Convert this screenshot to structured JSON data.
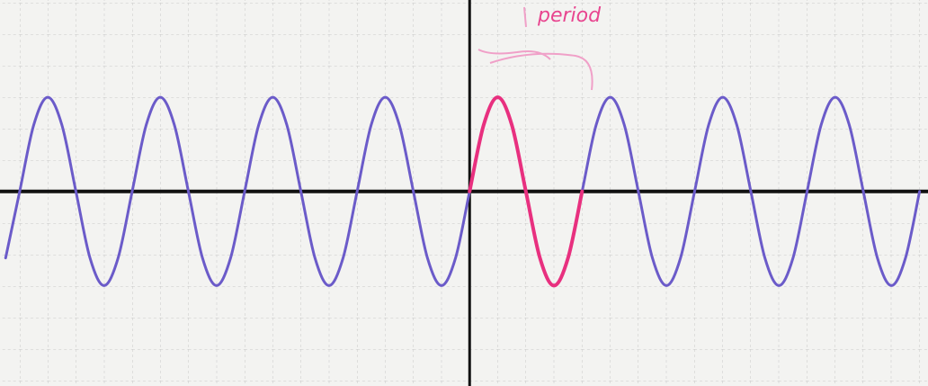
{
  "chart_data": {
    "type": "line",
    "annotation": "period",
    "x": [
      -16.5,
      -16,
      -15.5,
      -15,
      -14.5,
      -14,
      -13.5,
      -13,
      -12.5,
      -12,
      -11.5,
      -11,
      -10.5,
      -10,
      -9.5,
      -9,
      -8.5,
      -8,
      -7.5,
      -7,
      -6.5,
      -6,
      -5.5,
      -5,
      -4.5,
      -4,
      -3.5,
      -3,
      -2.5,
      -2,
      -1.5,
      -1,
      -0.5,
      0,
      0.5,
      1,
      1.5,
      2,
      2.5,
      3,
      3.5,
      4,
      4.5,
      5,
      5.5,
      6,
      6.5,
      7,
      7.5,
      8,
      8.5,
      9,
      9.5,
      10,
      10.5,
      11,
      11.5,
      12,
      12.5,
      13,
      13.5,
      14,
      14.5,
      15,
      15.5,
      16
    ],
    "series": [
      {
        "color": "#6b5bc9",
        "values": [
          -2.12,
          0,
          2.12,
          3,
          2.12,
          0,
          -2.12,
          -3,
          -2.12,
          0,
          2.12,
          3,
          2.12,
          0,
          -2.12,
          -3,
          -2.12,
          0,
          2.12,
          3,
          2.12,
          0,
          -2.12,
          -3,
          -2.12,
          0,
          2.12,
          3,
          2.12,
          0,
          -2.12,
          -3,
          -2.12,
          0,
          2.12,
          3,
          2.12,
          0,
          -2.12,
          -3,
          -2.12,
          0,
          2.12,
          3,
          2.12,
          0,
          -2.12,
          -3,
          -2.12,
          0,
          2.12,
          3,
          2.12,
          0,
          -2.12,
          -3,
          -2.12,
          0,
          2.12,
          3,
          2.12,
          0,
          -2.12,
          -3,
          -2.12,
          0
        ]
      },
      {
        "color": "#e8307f",
        "values": [
          null,
          null,
          null,
          null,
          null,
          null,
          null,
          null,
          null,
          null,
          null,
          null,
          null,
          null,
          null,
          null,
          null,
          null,
          null,
          null,
          null,
          null,
          null,
          null,
          null,
          null,
          null,
          null,
          null,
          null,
          null,
          null,
          null,
          0,
          2.12,
          3,
          2.12,
          0,
          -2.12,
          -3,
          -2.12,
          0,
          null,
          null,
          null,
          null,
          null,
          null,
          null,
          null,
          null,
          null,
          null,
          null,
          null,
          null,
          null,
          null,
          null,
          null,
          null,
          null,
          null,
          null,
          null,
          null
        ]
      }
    ],
    "xlim": [
      -16.7,
      16.3
    ],
    "ylim": [
      -6.2,
      6.1
    ]
  }
}
